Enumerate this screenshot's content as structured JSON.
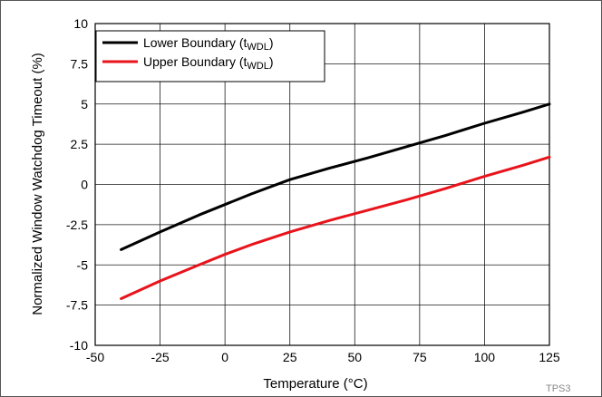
{
  "chart_data": {
    "type": "line",
    "xlabel": "Temperature (°C)",
    "ylabel": "Normalized Window Watchdog Timeout (%)",
    "xlim": [
      -50,
      125
    ],
    "ylim": [
      -10,
      10
    ],
    "x_ticks": [
      "-50",
      "-25",
      "0",
      "25",
      "50",
      "75",
      "100",
      "125"
    ],
    "y_ticks": [
      "-10",
      "-7.5",
      "-5",
      "-2.5",
      "0",
      "2.5",
      "5",
      "7.5",
      "10"
    ],
    "grid": true,
    "legend_position": "top-left",
    "series": [
      {
        "name": "Lower Boundary (t",
        "subscript": "WDL",
        "suffix": ")",
        "color": "#000000",
        "x": [
          -40,
          -25,
          -10,
          0,
          10,
          25,
          40,
          55,
          70,
          85,
          100,
          115,
          125
        ],
        "y": [
          -4.05,
          -2.95,
          -1.9,
          -1.25,
          -0.6,
          0.3,
          1.0,
          1.65,
          2.35,
          3.05,
          3.8,
          4.5,
          5.0
        ]
      },
      {
        "name": "Upper Boundary (t",
        "subscript": "WDL",
        "suffix": ")",
        "color": "#e8131b",
        "x": [
          -40,
          -25,
          -10,
          0,
          10,
          25,
          40,
          55,
          70,
          85,
          100,
          115,
          125
        ],
        "y": [
          -7.1,
          -6.0,
          -5.0,
          -4.35,
          -3.75,
          -2.95,
          -2.25,
          -1.6,
          -0.95,
          -0.25,
          0.5,
          1.2,
          1.7
        ]
      }
    ],
    "figure_code": "TPS3"
  }
}
